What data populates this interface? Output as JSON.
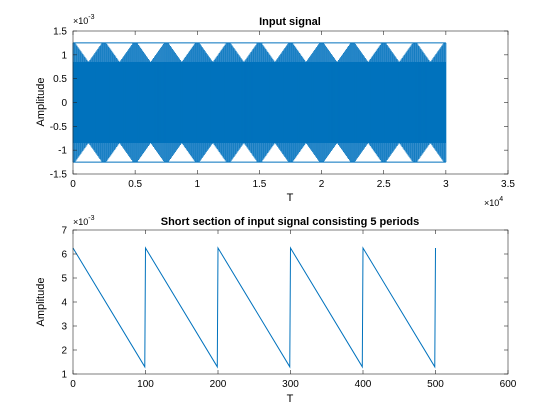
{
  "chart_data": [
    {
      "type": "area",
      "title": "Input signal",
      "xlabel": "T",
      "ylabel": "Amplitude",
      "xlim": [
        0,
        35000
      ],
      "ylim": [
        -0.0015,
        0.0015
      ],
      "x_ticks": [
        "0",
        "0.5",
        "1",
        "1.5",
        "2",
        "2.5",
        "3",
        "3.5"
      ],
      "y_ticks": [
        "-1.5",
        "-1",
        "-0.5",
        "0",
        "0.5",
        "1",
        "1.5"
      ],
      "x_multiplier": "10",
      "x_exponent": "4",
      "y_multiplier": "10",
      "y_exponent": "-3",
      "color": "#0072BD",
      "signal": {
        "x_start": 0,
        "x_end": 30000,
        "envelope_max": 0.00125,
        "envelope_min_at_peak": 0.00085,
        "period": 2500
      }
    },
    {
      "type": "line",
      "title": "Short section of input signal consisting 5 periods",
      "xlabel": "T",
      "ylabel": "Amplitude",
      "xlim": [
        0,
        600
      ],
      "ylim": [
        0.001,
        0.007
      ],
      "x_ticks": [
        "0",
        "100",
        "200",
        "300",
        "400",
        "500",
        "600"
      ],
      "y_ticks": [
        "1",
        "2",
        "3",
        "4",
        "5",
        "6",
        "7"
      ],
      "y_multiplier": "10",
      "y_exponent": "-3",
      "color": "#0072BD",
      "series": [
        {
          "x": [
            0,
            99,
            100,
            199,
            200,
            299,
            300,
            399,
            400,
            499,
            500
          ],
          "y": [
            0.00625,
            0.0013,
            0.00625,
            0.0013,
            0.00625,
            0.0013,
            0.00625,
            0.0013,
            0.00625,
            0.0013,
            0.00625
          ]
        }
      ]
    }
  ]
}
